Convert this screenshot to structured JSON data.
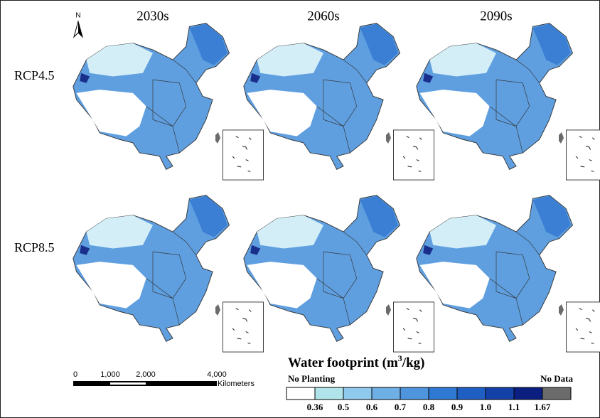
{
  "north": "N",
  "columns": [
    "2030s",
    "2060s",
    "2090s"
  ],
  "rows": [
    "RCP4.5",
    "RCP8.5"
  ],
  "scale_bar": {
    "labels": [
      "0",
      "1,000",
      "2,000",
      "4,000"
    ],
    "unit": "Kilometers"
  },
  "legend": {
    "title": [
      "Water footprint (m",
      "3",
      "/kg)"
    ],
    "no_planting": "No Planting",
    "no_data": "No Data",
    "breaks": [
      "0.36",
      "0.5",
      "0.6",
      "0.7",
      "0.8",
      "0.9",
      "1.0",
      "1.1",
      "1.67"
    ],
    "colors": [
      "#ffffff",
      "#b0e4ea",
      "#8fcaee",
      "#6eb0e6",
      "#4f95dd",
      "#3079d2",
      "#1f5ec3",
      "#1441a8",
      "#0a1f80",
      "#6b6b6b"
    ]
  }
}
